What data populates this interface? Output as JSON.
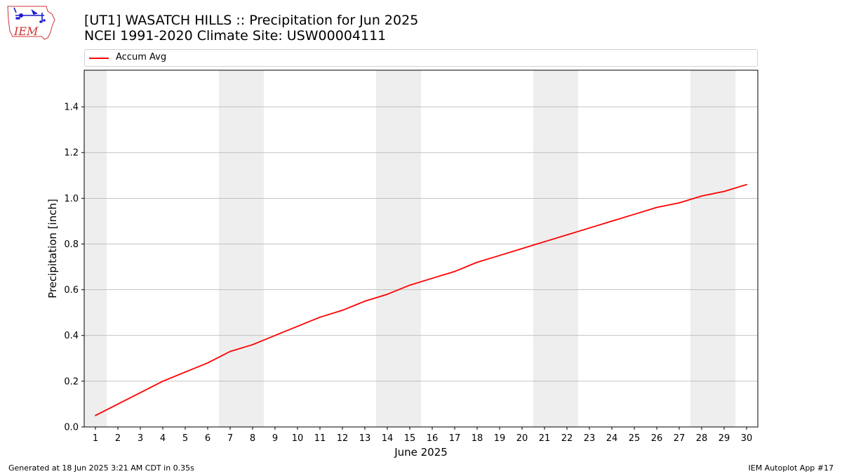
{
  "header": {
    "title_line1": "[UT1] WASATCH HILLS  :: Precipitation for Jun 2025",
    "title_line2": "NCEI 1991-2020 Climate Site: USW00004111",
    "logo_text": "IEM"
  },
  "footer": {
    "generated": "Generated at 18 Jun 2025 3:21 AM CDT in 0.35s",
    "app": "IEM Autoplot App #17"
  },
  "colors": {
    "series": "#ff0000",
    "weekend_band": "#eeeeee",
    "grid": "#b0b0b0",
    "logo": "#cc3333",
    "logo_accent": "#1a1acc"
  },
  "chart_data": {
    "type": "line",
    "title": "[UT1] WASATCH HILLS  :: Precipitation for Jun 2025",
    "subtitle": "NCEI 1991-2020 Climate Site: USW00004111",
    "xlabel": "June 2025",
    "ylabel": "Precipitation [inch]",
    "xlim": [
      0.5,
      30.5
    ],
    "ylim": [
      0,
      1.56
    ],
    "x_ticks": [
      1,
      2,
      3,
      4,
      5,
      6,
      7,
      8,
      9,
      10,
      11,
      12,
      13,
      14,
      15,
      16,
      17,
      18,
      19,
      20,
      21,
      22,
      23,
      24,
      25,
      26,
      27,
      28,
      29,
      30
    ],
    "y_ticks": [
      "0.0",
      "0.2",
      "0.4",
      "0.6",
      "0.8",
      "1.0",
      "1.2",
      "1.4"
    ],
    "y_tick_values": [
      0,
      0.2,
      0.4,
      0.6,
      0.8,
      1.0,
      1.2,
      1.4
    ],
    "grid": "horizontal",
    "legend": "top",
    "weekend_bands": [
      [
        0.5,
        1.5
      ],
      [
        6.5,
        8.5
      ],
      [
        13.5,
        15.5
      ],
      [
        20.5,
        22.5
      ],
      [
        27.5,
        29.5
      ]
    ],
    "series": [
      {
        "name": "Accum Avg",
        "x": [
          1,
          2,
          3,
          4,
          5,
          6,
          7,
          8,
          9,
          10,
          11,
          12,
          13,
          14,
          15,
          16,
          17,
          18,
          19,
          20,
          21,
          22,
          23,
          24,
          25,
          26,
          27,
          28,
          29,
          30
        ],
        "values": [
          0.05,
          0.1,
          0.15,
          0.2,
          0.24,
          0.28,
          0.33,
          0.36,
          0.4,
          0.44,
          0.48,
          0.51,
          0.55,
          0.58,
          0.62,
          0.65,
          0.68,
          0.72,
          0.75,
          0.78,
          0.81,
          0.84,
          0.87,
          0.9,
          0.93,
          0.96,
          0.98,
          1.01,
          1.03,
          1.06
        ]
      }
    ]
  }
}
